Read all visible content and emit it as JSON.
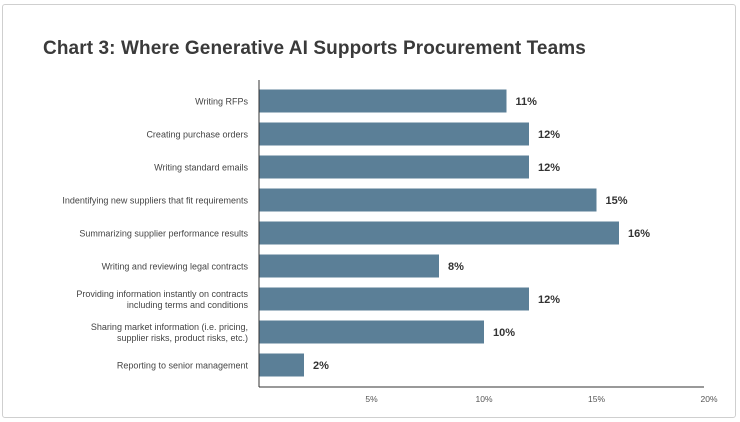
{
  "chart_data": {
    "type": "bar",
    "orientation": "horizontal",
    "title": "Chart 3: Where Generative AI Supports Procurement Teams",
    "categories": [
      [
        "Writing RFPs"
      ],
      [
        "Creating purchase orders"
      ],
      [
        "Writing standard emails"
      ],
      [
        "Indentifying new suppliers that fit requirements"
      ],
      [
        "Summarizing supplier performance results"
      ],
      [
        "Writing and reviewing legal contracts"
      ],
      [
        "Providing information instantly on contracts",
        "including terms and conditions"
      ],
      [
        "Sharing market information (i.e. pricing,",
        "supplier risks, product risks, etc.)"
      ],
      [
        "Reporting to senior management"
      ]
    ],
    "values": [
      11,
      12,
      12,
      15,
      16,
      8,
      12,
      10,
      2
    ],
    "value_labels": [
      "11%",
      "12%",
      "12%",
      "15%",
      "16%",
      "8%",
      "12%",
      "10%",
      "2%"
    ],
    "xlim": [
      0,
      20
    ],
    "xticks": [
      5,
      10,
      15,
      20
    ],
    "xtick_labels": [
      "5%",
      "10%",
      "15%",
      "20%"
    ],
    "xlabel": "",
    "ylabel": "",
    "grid": false,
    "bar_color": "#5b7f97",
    "text_color": "#444444"
  }
}
